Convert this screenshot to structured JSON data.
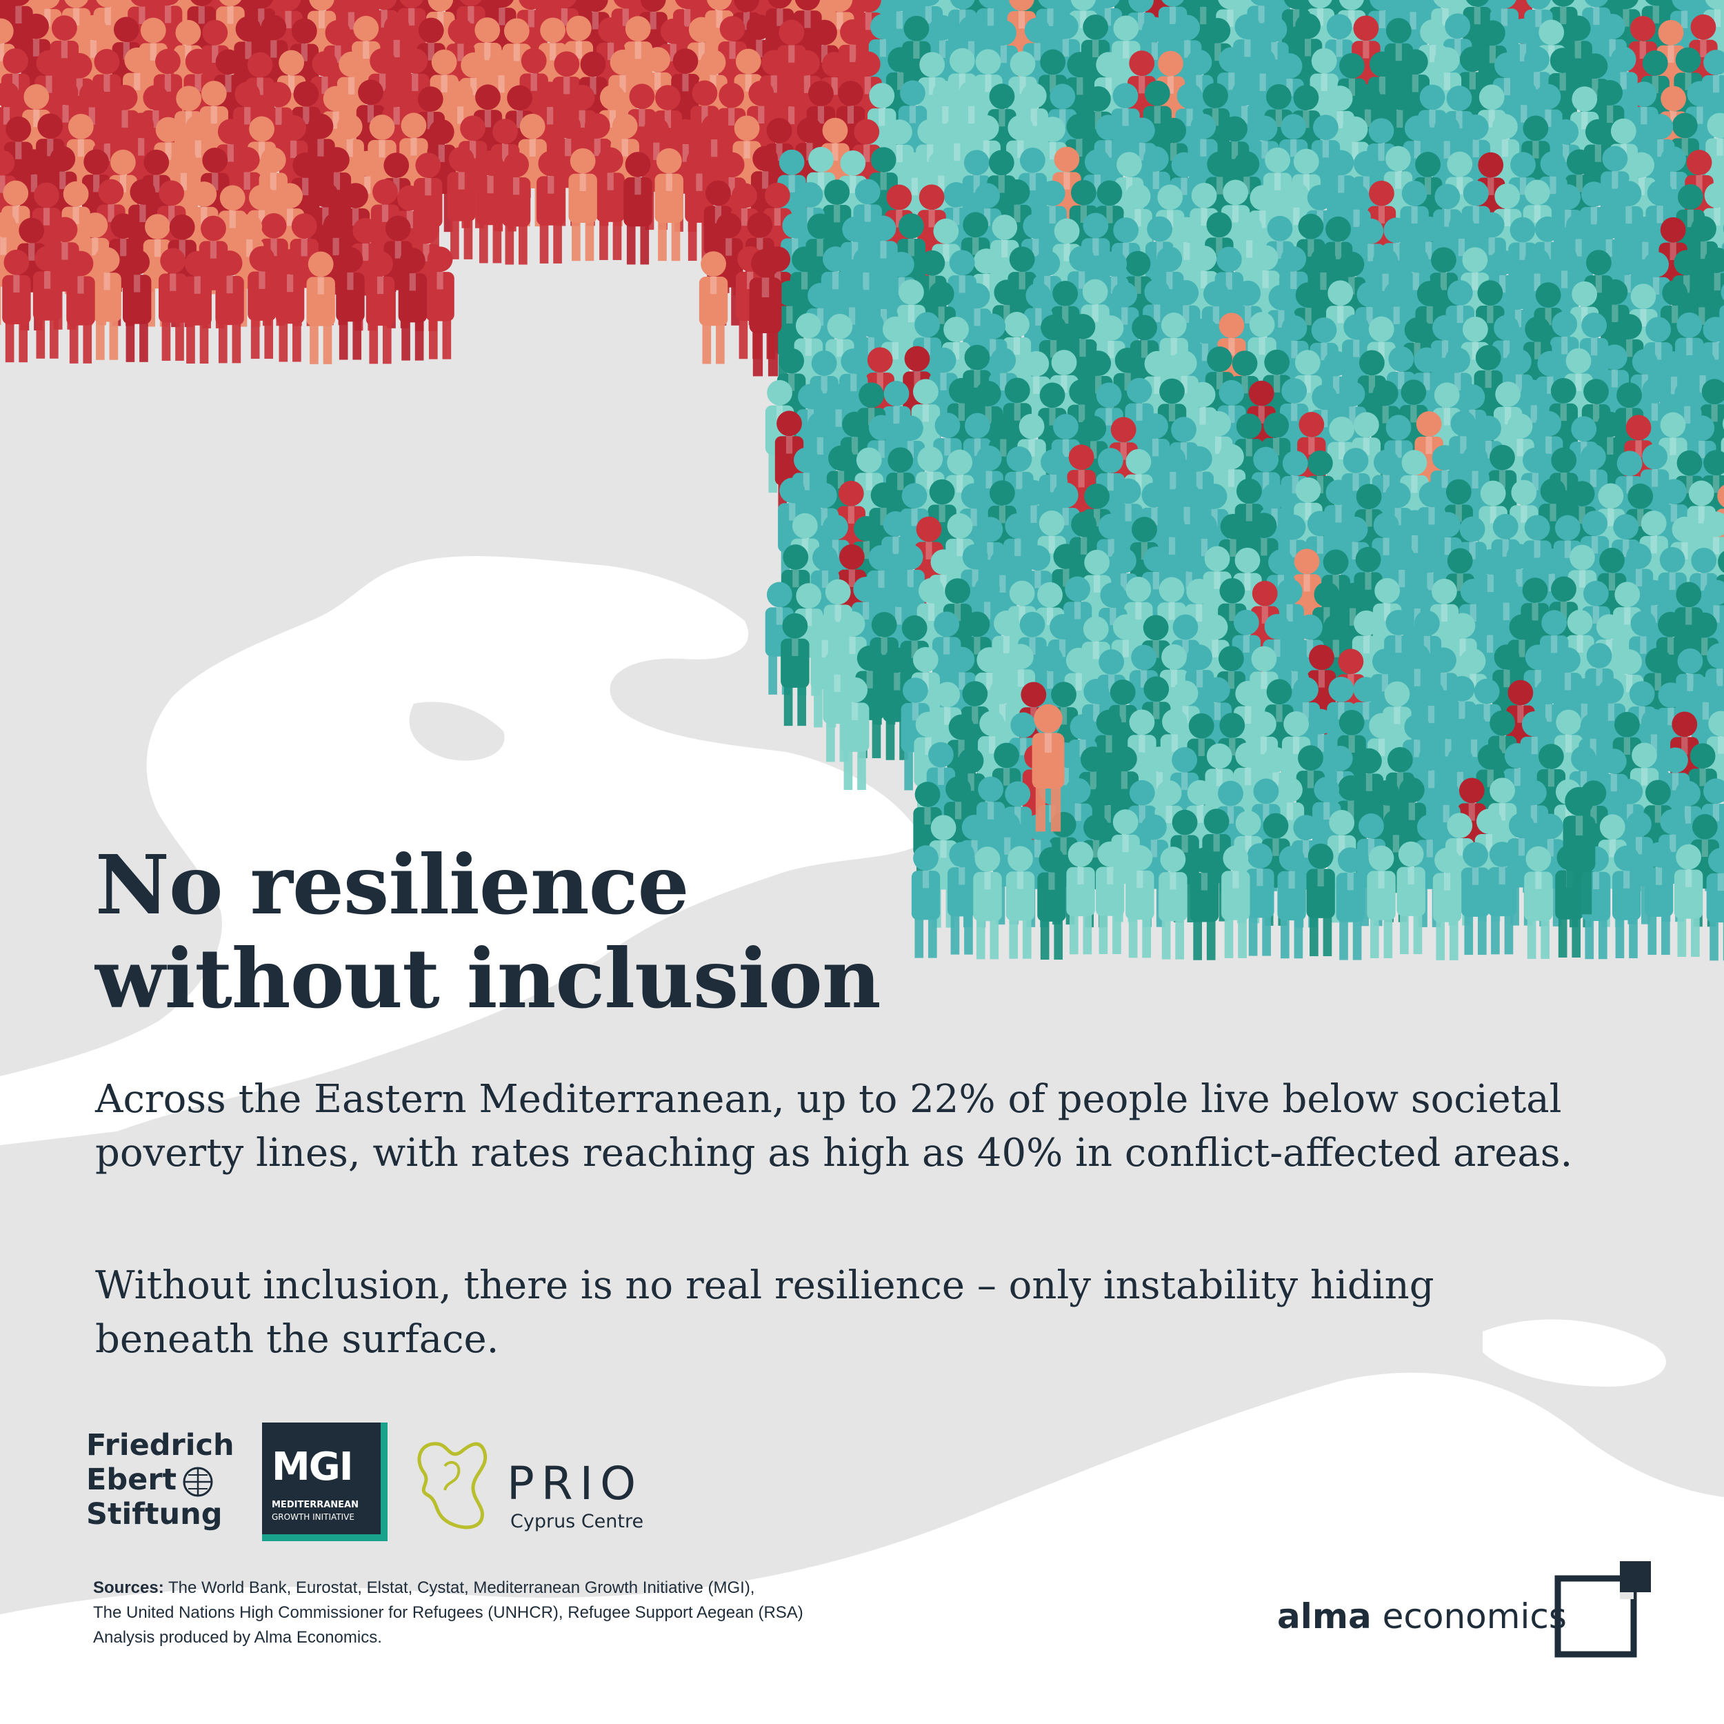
{
  "colors": {
    "background": "#e5e5e6",
    "land": "#ffffff",
    "text": "#1f2d3a",
    "red_dark": "#b5232f",
    "red_mid": "#c9333b",
    "red_light": "#ec8a6c",
    "teal_dark": "#1a8f7e",
    "teal_mid": "#45b2b3",
    "teal_light": "#7fd3c9",
    "mgi_accent": "#1aa38c",
    "prio_lime": "#b8be2c"
  },
  "headline": {
    "line1": "No resilience",
    "line2": "without inclusion"
  },
  "body": {
    "p1": "Across the Eastern Mediterranean, up to 22% of people live below societal poverty lines, with rates reaching as high as 40% in conflict-affected areas.",
    "p2": "Without inclusion, there is no real resilience – only instability hiding beneath the surface."
  },
  "logos": {
    "fes": {
      "line1": "Friedrich",
      "line2": "Ebert",
      "line3": "Stiftung"
    },
    "mgi": {
      "big": "MGI",
      "line1": "MEDITERRANEAN",
      "line2": "GROWTH INITIATIVE"
    },
    "prio": {
      "word": "PRIO",
      "sub": "Cyprus Centre"
    }
  },
  "sources": {
    "label": "Sources:",
    "line1": " The World Bank, Eurostat, Elstat, Cystat, Mediterranean Growth Initiative (MGI),",
    "line2": "The United Nations High Commissioner for Refugees (UNHCR), Refugee Support Aegean (RSA)",
    "line3": "Analysis produced by Alma Economics."
  },
  "brand": {
    "bold": "alma",
    "rest": " economics"
  },
  "icons": [
    "globe-icon",
    "prio-cyprus-icon",
    "alma-square-icon"
  ]
}
